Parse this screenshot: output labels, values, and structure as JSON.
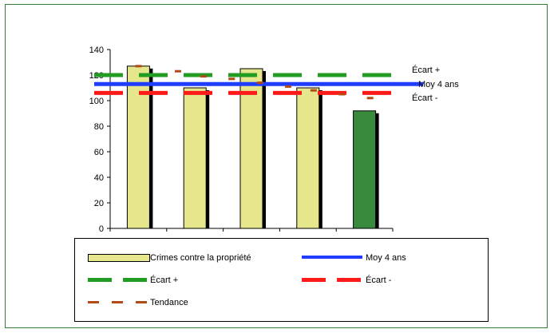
{
  "colors": {
    "bar_fill": "#e6e68c",
    "bar_current": "#3a8a3e",
    "bar_shadow": "#000000",
    "moy_line": "#1f3dff",
    "ecart_plus": "#239c23",
    "ecart_minus": "#ff1a1a",
    "tendance": "#b34a14",
    "frame_border": "#2e7d32"
  },
  "chart_data": {
    "type": "bar",
    "categories": [
      "",
      "",
      "",
      "",
      ""
    ],
    "series": [
      {
        "name": "Crimes contre la propriété",
        "values": [
          127,
          110,
          125,
          110,
          92
        ]
      }
    ],
    "reference_lines": [
      {
        "name": "Moy 4 ans",
        "value": 113
      },
      {
        "name": "Écart +",
        "value": 120
      },
      {
        "name": "Écart -",
        "value": 106
      }
    ],
    "trend": {
      "name": "Tendance",
      "x": [
        0.0,
        0.7,
        1.15,
        1.65,
        2.15,
        2.65,
        3.1,
        3.6,
        4.1
      ],
      "y": [
        127,
        123,
        119,
        117,
        114,
        111,
        108,
        105,
        102
      ]
    },
    "ylim": [
      0,
      140
    ],
    "yticks": [
      0,
      20,
      40,
      60,
      80,
      100,
      120,
      140
    ],
    "grid": false,
    "legend_position": "bottom"
  },
  "annotations": {
    "ecart_plus": "Écart +",
    "moy": "Moy 4 ans",
    "ecart_minus": "Écart -"
  },
  "legend": {
    "items": [
      {
        "label": "Crimes contre la propriété"
      },
      {
        "label": "Moy 4 ans"
      },
      {
        "label": "Écart +"
      },
      {
        "label": "Écart -"
      },
      {
        "label": "Tendance"
      }
    ]
  }
}
